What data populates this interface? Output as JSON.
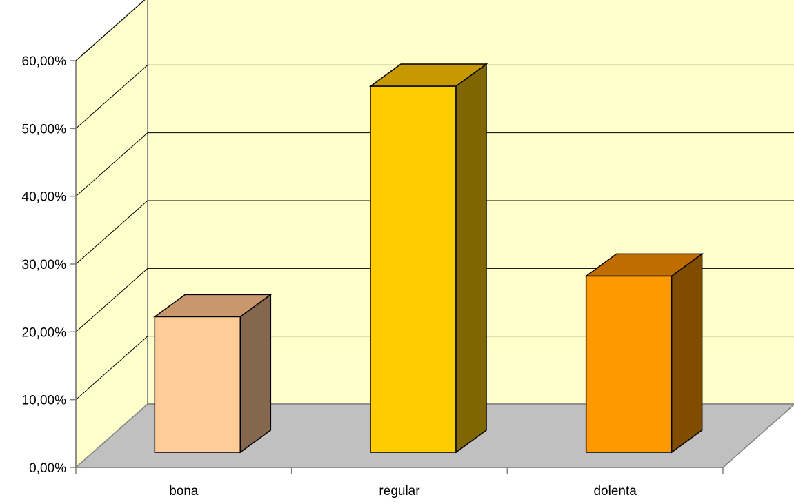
{
  "chart_data": {
    "type": "bar",
    "title": "",
    "xlabel": "",
    "ylabel": "",
    "categories": [
      "bona",
      "regular",
      "dolenta"
    ],
    "values": [
      0.2,
      0.54,
      0.26
    ],
    "ylim": [
      0,
      0.6
    ],
    "yticks": [
      0,
      0.1,
      0.2,
      0.3,
      0.4,
      0.5,
      0.6
    ],
    "ytick_labels": [
      "0,00%",
      "10,00%",
      "20,00%",
      "30,00%",
      "40,00%",
      "50,00%",
      "60,00%"
    ],
    "grid": true,
    "legend": "none",
    "three_d": true,
    "colors": {
      "back_wall": "#ffffcc",
      "floor": "#c0c0c0",
      "bars": [
        {
          "front": "#ffcc99",
          "top": "#c8976b",
          "side": "#84674c"
        },
        {
          "front": "#ffcc00",
          "top": "#c79900",
          "side": "#806600"
        },
        {
          "front": "#ff9900",
          "top": "#c06d00",
          "side": "#804c00"
        }
      ]
    }
  }
}
